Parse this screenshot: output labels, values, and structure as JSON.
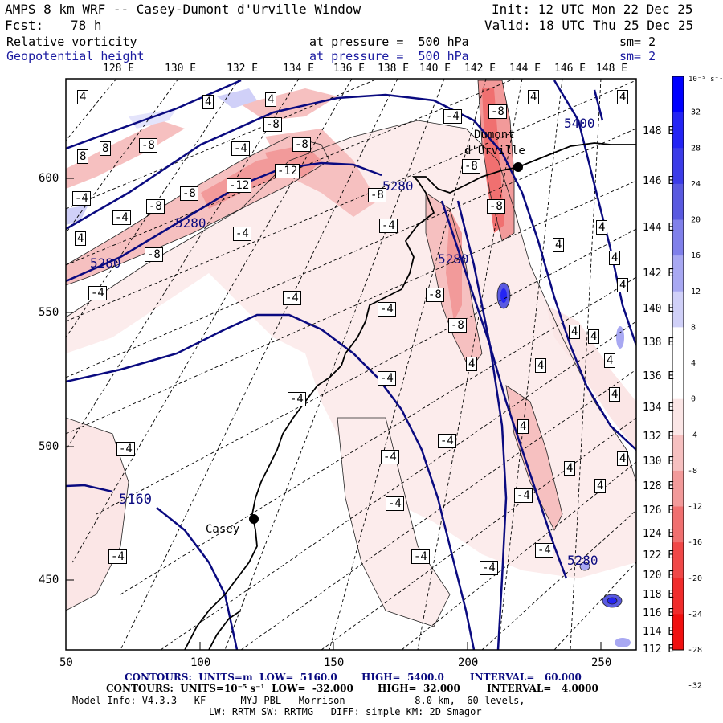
{
  "header": {
    "title": "AMPS 8 km WRF -- Casey-Dumont d'Urville Window",
    "fcst_label": "Fcst:",
    "fcst_value": "78 h",
    "init": "Init: 12 UTC Mon 22 Dec 25",
    "valid": "Valid: 18 UTC Thu 25 Dec 25",
    "field1_name": "Relative vorticity",
    "field1_level": "at pressure =  500 hPa",
    "field1_sm": "sm= 2",
    "field2_name": "Geopotential height",
    "field2_level": "at pressure =  500 hPa",
    "field2_sm": "sm= 2"
  },
  "map": {
    "top_lon_labels": [
      "128 E",
      "130 E",
      "132 E",
      "134 E",
      "136 E",
      "138 E",
      "140 E",
      "142 E",
      "144 E",
      "146 E",
      "148 E"
    ],
    "right_lat_labels": [
      "148 E",
      "146 E",
      "144 E",
      "142 E",
      "140 E",
      "138 E",
      "136 E",
      "134 E",
      "132 E",
      "130 E",
      "128 E",
      "126 E",
      "124 E",
      "122 E",
      "120 E",
      "118 E",
      "116 E",
      "114 E",
      "112 E"
    ],
    "left_y_labels": [
      "600",
      "550",
      "500",
      "450"
    ],
    "bottom_x_labels": [
      "50",
      "100",
      "150",
      "200",
      "250"
    ],
    "stations": [
      {
        "name": "Dumont",
        "name2": "d'Urville"
      },
      {
        "name": "Casey"
      }
    ],
    "height_labels": [
      "5400",
      "5280",
      "5280",
      "5280",
      "5280",
      "5160",
      "5280"
    ],
    "vort_labels": [
      "4",
      "4",
      "4",
      "4",
      "4",
      "-8",
      "-8",
      "-8",
      "-8",
      "-12",
      "-12",
      "-8",
      "-8",
      "-8",
      "-4",
      "-4",
      "-4",
      "-4",
      "-4",
      "-4",
      "-4",
      "-4",
      "-4",
      "-4",
      "-4",
      "-4",
      "-4",
      "-4",
      "-4",
      "-4",
      "-4",
      "-4",
      "-4",
      "-4",
      "-8",
      "-8",
      "-8",
      "-8",
      "-8",
      "4",
      "4",
      "4",
      "4",
      "4",
      "4",
      "4",
      "4",
      "4",
      "4",
      "4",
      "4",
      "8",
      "8",
      "4",
      "4",
      "4"
    ]
  },
  "colorbar": {
    "unit_label": "10⁻⁵ s⁻¹",
    "ticks": [
      "32",
      "28",
      "24",
      "20",
      "16",
      "12",
      "8",
      "4",
      "0",
      "-4",
      "-8",
      "-12",
      "-16",
      "-20",
      "-24",
      "-28",
      "-32"
    ],
    "colors": [
      "#0000ff",
      "#2424f4",
      "#3c3ce8",
      "#5a5ae0",
      "#8080ea",
      "#a8a8f2",
      "#d0d0f8",
      "#ffffff",
      "#ffffff",
      "#fbe6e6",
      "#f6c0c0",
      "#f29a9a",
      "#f07070",
      "#f04848",
      "#f02c2c",
      "#f01010"
    ]
  },
  "footer": {
    "line1_a": "CONTOURS:  UNITS=m  LOW=  5160.0",
    "line1_b": "HIGH=  5400.0",
    "line1_c": "INTERVAL=   60.000",
    "line2_a": "CONTOURS:  UNITS=10⁻⁵ s⁻¹  LOW=  -32.000",
    "line2_b": "HIGH=  32.000",
    "line2_c": "INTERVAL=   4.0000",
    "line3": "Model Info: V4.3.3   KF      MYJ PBL   Morrison            8.0 km,  60 levels,",
    "line4": "LW: RRTM SW: RRTMG   DIFF: simple KM: 2D Smagor"
  }
}
